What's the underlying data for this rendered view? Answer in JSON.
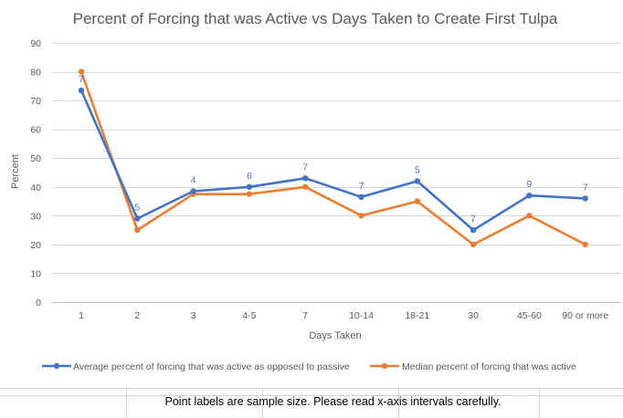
{
  "chart_data": {
    "type": "line",
    "title": "Percent of Forcing that was Active vs Days Taken to Create First Tulpa",
    "xlabel": "Days Taken",
    "ylabel": "Percent",
    "ylim": [
      0,
      90
    ],
    "yticks": [
      0,
      10,
      20,
      30,
      40,
      50,
      60,
      70,
      80,
      90
    ],
    "grid": true,
    "legend_position": "bottom",
    "categories": [
      "1",
      "2",
      "3",
      "4-5",
      "7",
      "10-14",
      "18-21",
      "30",
      "45-60",
      "90 or more"
    ],
    "series": [
      {
        "name": "Average percent of forcing that was active as opposed to passive",
        "color": "#4472C4",
        "values": [
          73.5,
          29,
          38.5,
          40,
          43,
          36.5,
          42,
          25,
          37,
          36
        ]
      },
      {
        "name": "Median percent of forcing that was active",
        "color": "#ED7D31",
        "values": [
          80,
          25,
          37.5,
          37.5,
          40,
          30,
          35,
          20,
          30,
          20
        ]
      }
    ],
    "point_labels": [
      "7",
      "5",
      "4",
      "6",
      "7",
      "7",
      "5",
      "7",
      "9",
      "7"
    ]
  },
  "note": "Point labels are sample size. Please read x-axis intervals carefully."
}
